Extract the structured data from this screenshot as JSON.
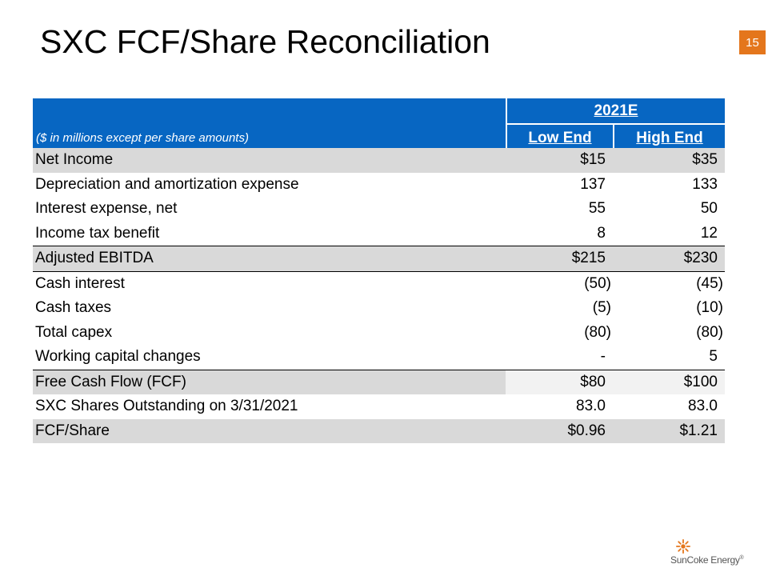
{
  "slide": {
    "title": "SXC FCF/Share Reconciliation",
    "page_number": "15"
  },
  "table": {
    "year_header": "2021E",
    "subtitle": "($ in millions except per share amounts)",
    "col_low": "Low End",
    "col_high": "High End",
    "rows": [
      {
        "label": "Net Income",
        "low": "$15",
        "high": "$35"
      },
      {
        "label": "Depreciation and amortization expense",
        "low": "137",
        "high": "133"
      },
      {
        "label": "Interest expense, net",
        "low": "55",
        "high": "50"
      },
      {
        "label": "Income tax benefit",
        "low": "8",
        "high": "12"
      },
      {
        "label": "Adjusted EBITDA",
        "low": "$215",
        "high": "$230"
      },
      {
        "label": "Cash interest",
        "low": "(50)",
        "high": "(45)"
      },
      {
        "label": "Cash taxes",
        "low": "(5)",
        "high": "(10)"
      },
      {
        "label": "Total capex",
        "low": "(80)",
        "high": "(80)"
      },
      {
        "label": "Working capital changes",
        "low": "-",
        "high": "5"
      },
      {
        "label": "Free Cash Flow (FCF)",
        "low": "$80",
        "high": "$100"
      },
      {
        "label": "SXC Shares Outstanding on 3/31/2021",
        "low": "83.0",
        "high": "83.0"
      },
      {
        "label": "FCF/Share",
        "low": "$0.96",
        "high": "$1.21"
      }
    ]
  },
  "logo": {
    "text": "SunCoke Energy",
    "mark": "®",
    "icon": "sun-icon",
    "accent_color": "#e4761c"
  },
  "colors": {
    "header_blue": "#0766c2",
    "shade_gray": "#d9d9d9",
    "page_badge_orange": "#e4761c"
  }
}
